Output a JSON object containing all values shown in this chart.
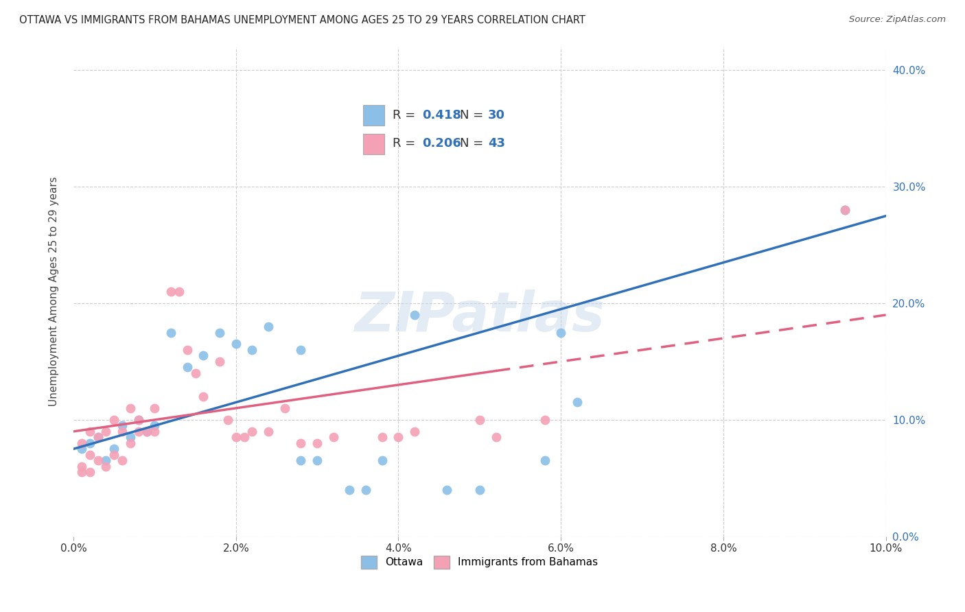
{
  "title": "OTTAWA VS IMMIGRANTS FROM BAHAMAS UNEMPLOYMENT AMONG AGES 25 TO 29 YEARS CORRELATION CHART",
  "source": "Source: ZipAtlas.com",
  "ylabel": "Unemployment Among Ages 25 to 29 years",
  "legend_label1": "Ottawa",
  "legend_label2": "Immigrants from Bahamas",
  "R1": 0.418,
  "N1": 30,
  "R2": 0.206,
  "N2": 43,
  "color1": "#8bbfe8",
  "color2": "#f4a0b5",
  "line_color1": "#3070b8",
  "line_color2": "#e06080",
  "xlim": [
    0.0,
    0.1
  ],
  "ylim": [
    0.0,
    0.42
  ],
  "xticks": [
    0.0,
    0.02,
    0.04,
    0.06,
    0.08,
    0.1
  ],
  "yticks": [
    0.0,
    0.1,
    0.2,
    0.3,
    0.4
  ],
  "background_color": "#ffffff",
  "watermark": "ZIPatlas",
  "ottawa_x": [
    0.001,
    0.002,
    0.003,
    0.004,
    0.005,
    0.006,
    0.007,
    0.008,
    0.009,
    0.01,
    0.012,
    0.014,
    0.016,
    0.018,
    0.02,
    0.022,
    0.024,
    0.028,
    0.03,
    0.036,
    0.038,
    0.042,
    0.046,
    0.05,
    0.058,
    0.06,
    0.062,
    0.028,
    0.034,
    0.095
  ],
  "ottawa_y": [
    0.075,
    0.08,
    0.085,
    0.065,
    0.075,
    0.095,
    0.085,
    0.1,
    0.09,
    0.095,
    0.175,
    0.145,
    0.155,
    0.175,
    0.165,
    0.16,
    0.18,
    0.16,
    0.065,
    0.04,
    0.065,
    0.19,
    0.04,
    0.04,
    0.065,
    0.175,
    0.115,
    0.065,
    0.04,
    0.28
  ],
  "bahamas_x": [
    0.001,
    0.001,
    0.001,
    0.002,
    0.002,
    0.002,
    0.003,
    0.003,
    0.004,
    0.004,
    0.005,
    0.005,
    0.006,
    0.006,
    0.007,
    0.007,
    0.008,
    0.008,
    0.009,
    0.01,
    0.01,
    0.012,
    0.013,
    0.014,
    0.015,
    0.016,
    0.018,
    0.019,
    0.02,
    0.021,
    0.022,
    0.024,
    0.026,
    0.028,
    0.03,
    0.032,
    0.038,
    0.04,
    0.042,
    0.05,
    0.052,
    0.058,
    0.095
  ],
  "bahamas_y": [
    0.06,
    0.08,
    0.055,
    0.07,
    0.09,
    0.055,
    0.065,
    0.085,
    0.06,
    0.09,
    0.07,
    0.1,
    0.09,
    0.065,
    0.11,
    0.08,
    0.09,
    0.1,
    0.09,
    0.09,
    0.11,
    0.21,
    0.21,
    0.16,
    0.14,
    0.12,
    0.15,
    0.1,
    0.085,
    0.085,
    0.09,
    0.09,
    0.11,
    0.08,
    0.08,
    0.085,
    0.085,
    0.085,
    0.09,
    0.1,
    0.085,
    0.1,
    0.28
  ],
  "marker_size": 100
}
